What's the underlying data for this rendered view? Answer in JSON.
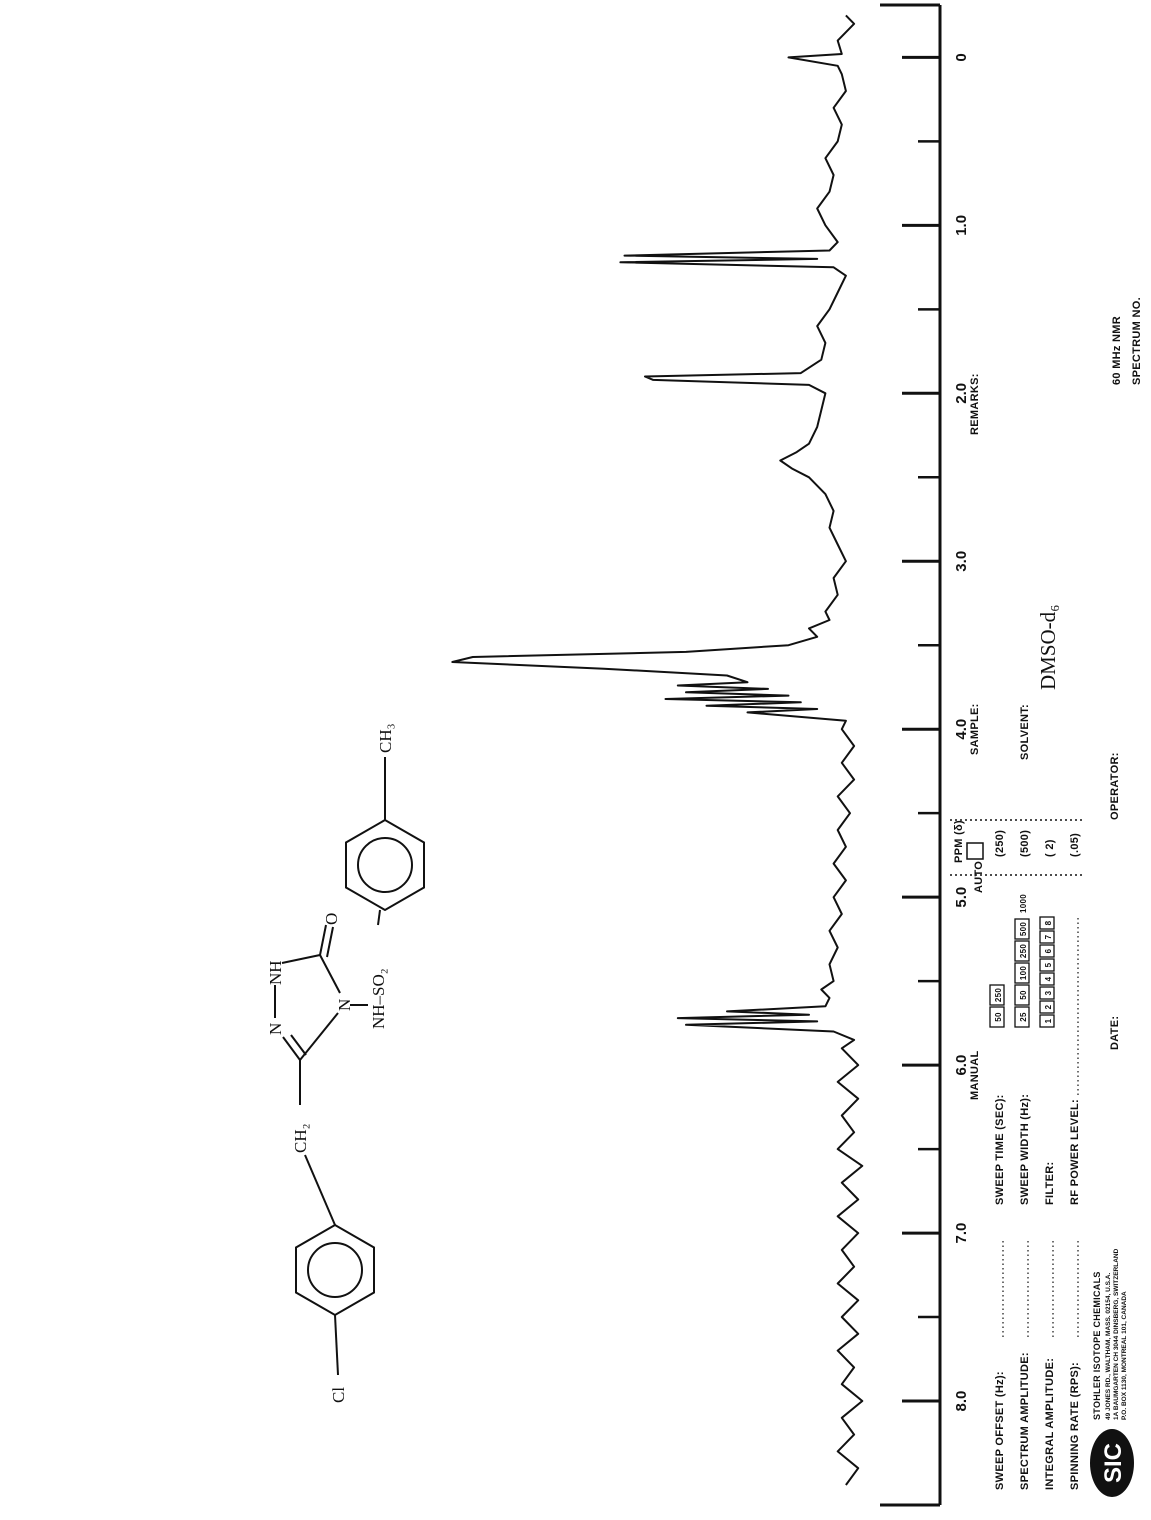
{
  "chart_data": {
    "type": "line",
    "x_axis_label": "PPM (δ)",
    "xlim": [
      8.5,
      -0.3
    ],
    "xticks": [
      {
        "value": 8,
        "label": "8.0"
      },
      {
        "value": 7,
        "label": "7.0"
      },
      {
        "value": 6,
        "label": "6.0"
      },
      {
        "value": 5,
        "label": "5.0"
      },
      {
        "value": 4,
        "label": "4.0"
      },
      {
        "value": 3,
        "label": "3.0"
      },
      {
        "value": 2,
        "label": "2.0"
      },
      {
        "value": 1,
        "label": "1.0"
      },
      0
    ],
    "xticks_minor": [
      7.5,
      6.5,
      5.5,
      4.5,
      3.5,
      2.5,
      1.5,
      0.5
    ],
    "ylim": [
      0,
      100
    ],
    "color": "#111111",
    "x": [
      8.5,
      8.4,
      8.3,
      8.2,
      8.1,
      8.0,
      7.9,
      7.8,
      7.7,
      7.6,
      7.5,
      7.4,
      7.3,
      7.2,
      7.1,
      7.0,
      6.9,
      6.8,
      6.7,
      6.6,
      6.5,
      6.4,
      6.3,
      6.2,
      6.1,
      6.0,
      5.9,
      5.85,
      5.8,
      5.76,
      5.74,
      5.72,
      5.7,
      5.68,
      5.65,
      5.6,
      5.55,
      5.5,
      5.4,
      5.3,
      5.2,
      5.1,
      5.0,
      4.9,
      4.8,
      4.7,
      4.6,
      4.5,
      4.4,
      4.3,
      4.2,
      4.1,
      4.0,
      3.95,
      3.9,
      3.88,
      3.86,
      3.84,
      3.82,
      3.8,
      3.78,
      3.76,
      3.74,
      3.72,
      3.68,
      3.64,
      3.6,
      3.57,
      3.54,
      3.5,
      3.45,
      3.4,
      3.35,
      3.3,
      3.2,
      3.1,
      3.0,
      2.9,
      2.8,
      2.7,
      2.6,
      2.5,
      2.45,
      2.4,
      2.35,
      2.3,
      2.2,
      2.1,
      2.0,
      1.95,
      1.92,
      1.9,
      1.88,
      1.8,
      1.7,
      1.6,
      1.5,
      1.4,
      1.3,
      1.25,
      1.22,
      1.2,
      1.18,
      1.15,
      1.1,
      1.0,
      0.9,
      0.8,
      0.7,
      0.6,
      0.5,
      0.4,
      0.3,
      0.2,
      0.1,
      0.05,
      0.0,
      -0.02,
      -0.1,
      -0.2,
      -0.25
    ],
    "values": [
      1,
      -2,
      3,
      -1,
      2,
      -3,
      2,
      -1,
      3,
      -2,
      2,
      -2,
      3,
      -1,
      2,
      -2,
      3,
      -2,
      2,
      -3,
      3,
      -1,
      2,
      -2,
      3,
      -2,
      2,
      -1,
      4,
      40,
      8,
      42,
      10,
      30,
      6,
      5,
      7,
      4,
      5,
      3,
      5,
      2,
      4,
      1,
      4,
      1,
      3,
      0,
      3,
      -1,
      2,
      -1,
      2,
      1,
      25,
      8,
      35,
      12,
      45,
      15,
      40,
      20,
      42,
      25,
      30,
      60,
      97,
      92,
      40,
      15,
      8,
      10,
      5,
      6,
      3,
      4,
      1,
      3,
      5,
      4,
      6,
      10,
      14,
      17,
      13,
      10,
      8,
      7,
      6,
      10,
      48,
      50,
      12,
      7,
      6,
      8,
      5,
      3,
      1,
      4,
      56,
      8,
      55,
      5,
      3,
      6,
      8,
      5,
      4,
      6,
      3,
      2,
      4,
      1,
      2,
      3,
      15,
      2,
      3,
      -1,
      1
    ]
  },
  "structure": {
    "labels": [
      "Cl",
      "CH₂",
      "N",
      "NH",
      "O",
      "N",
      "NH–SO₂",
      "CH₃"
    ]
  },
  "form": {
    "manual": "MANUAL",
    "auto": "AUTO",
    "left_labels": [
      "SWEEP OFFSET (Hz):",
      "SPECTRUM AMPLITUDE:",
      "INTEGRAL AMPLITUDE:",
      "SPINNING RATE (RPS):"
    ],
    "mid_labels": [
      "SWEEP TIME (SEC):",
      "SWEEP WIDTH (Hz):",
      "FILTER:",
      "RF POWER LEVEL:"
    ],
    "auto_values": [
      "(250)",
      "(500)",
      "( 2)",
      "(.05)"
    ],
    "sweep_time_boxes": [
      50,
      250
    ],
    "sweep_width_boxes": [
      25,
      50,
      100,
      250,
      500
    ],
    "sweep_width_extra": 1000,
    "filter_boxes": [
      1,
      2,
      3,
      4,
      5,
      6,
      7,
      8
    ],
    "sample": "SAMPLE:",
    "solvent_label": "SOLVENT:",
    "solvent": "DMSO-d₆",
    "remarks": "REMARKS:",
    "operator": "OPERATOR:",
    "date": "DATE:",
    "spectrometer": "60 MHz NMR",
    "spectrum_no": "SPECTRUM NO."
  },
  "company": {
    "logo": "SIC",
    "name": "STOHLER ISOTOPE CHEMICALS",
    "addresses": [
      "49 JONES RD., WALTHAM, MASS. 02154, U.S.A.",
      "1A BAUMGARTEN CH 3044 DINSBERG, SWITZERLAND",
      "P.O. BOX 1130, MONTREAL 101, CANADA"
    ]
  }
}
